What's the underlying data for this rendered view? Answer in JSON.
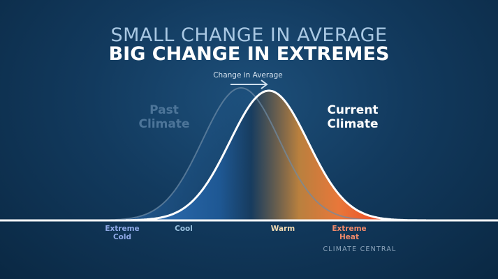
{
  "title_line1": "SMALL CHANGE IN AVERAGE",
  "title_line2": "BIG CHANGE IN EXTREMES",
  "arrow_label": "Change in Average",
  "curves": {
    "past": "Past Climate",
    "current": "Current Climate"
  },
  "past_label": {
    "line1": "Past",
    "line2": "Climate"
  },
  "current_label": {
    "line1": "Current",
    "line2": "Climate"
  },
  "axis_labels": {
    "extreme_cold": "Extreme Cold",
    "cool": "Cool",
    "warm": "Warm",
    "extreme_heat": "Extreme Heat"
  },
  "brand": "CLIMATE CENTRAL",
  "colors": {
    "cold": "#2f6fb5",
    "warm": "#e8873a",
    "hot": "#f0341a",
    "background": "#123a5e"
  }
}
